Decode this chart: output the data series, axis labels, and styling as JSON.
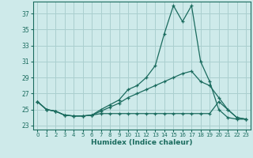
{
  "xlabel": "Humidex (Indice chaleur)",
  "bg_color": "#ceeaea",
  "grid_color": "#aacfcf",
  "line_color": "#1a6b5e",
  "xlim": [
    -0.5,
    23.5
  ],
  "ylim": [
    22.5,
    38.5
  ],
  "yticks": [
    23,
    25,
    27,
    29,
    31,
    33,
    35,
    37
  ],
  "xticks": [
    0,
    1,
    2,
    3,
    4,
    5,
    6,
    7,
    8,
    9,
    10,
    11,
    12,
    13,
    14,
    15,
    16,
    17,
    18,
    19,
    20,
    21,
    22,
    23
  ],
  "series1": [
    26.0,
    25.0,
    24.8,
    24.3,
    24.2,
    24.2,
    24.3,
    25.0,
    25.6,
    26.2,
    27.5,
    28.0,
    29.0,
    30.5,
    34.5,
    38.0,
    36.0,
    38.0,
    31.0,
    28.5,
    25.0,
    24.0,
    23.8,
    23.8
  ],
  "series2": [
    26.0,
    25.0,
    24.8,
    24.3,
    24.2,
    24.2,
    24.3,
    24.8,
    25.3,
    25.8,
    26.5,
    27.0,
    27.5,
    28.0,
    28.5,
    29.0,
    29.5,
    29.8,
    28.5,
    28.0,
    26.5,
    25.0,
    24.0,
    23.8
  ],
  "series3": [
    26.0,
    25.0,
    24.8,
    24.3,
    24.2,
    24.2,
    24.3,
    24.5,
    24.5,
    24.5,
    24.5,
    24.5,
    24.5,
    24.5,
    24.5,
    24.5,
    24.5,
    24.5,
    24.5,
    24.5,
    26.0,
    25.0,
    24.0,
    23.8
  ]
}
